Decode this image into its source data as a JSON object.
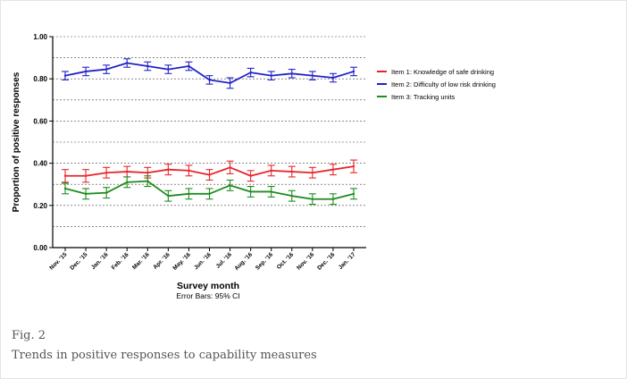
{
  "figure": {
    "label": "Fig. 2",
    "caption": "Trends in positive responses to capability measures"
  },
  "chart_data": {
    "type": "line",
    "title": "",
    "xlabel": "Survey month",
    "xlabel_note": "Error Bars: 95% CI",
    "ylabel": "Proportion of positive responses",
    "ylim": [
      0,
      1
    ],
    "yticks": [
      "0.00",
      "0.20",
      "0.40",
      "0.60",
      "0.80",
      "1.00"
    ],
    "grid": "horizontal dashed every 0.10",
    "legend_position": "right",
    "categories": [
      "Nov. '15",
      "Dec. '15",
      "Jan. '16",
      "Feb. '16",
      "Mar. '16",
      "Apr. '16",
      "May. '16",
      "Jun. '16",
      "Jul. '16",
      "Aug. '16",
      "Sep. '16",
      "Oct. '16",
      "Nov. '16",
      "Dec. '16",
      "Jan. '17"
    ],
    "series": [
      {
        "name": "Item 1: Knowledge of safe drinking",
        "color": "#e8252b",
        "values": [
          0.34,
          0.34,
          0.355,
          0.36,
          0.355,
          0.37,
          0.365,
          0.345,
          0.38,
          0.34,
          0.365,
          0.36,
          0.355,
          0.37,
          0.385
        ],
        "ci": [
          0.03,
          0.03,
          0.025,
          0.025,
          0.025,
          0.025,
          0.025,
          0.025,
          0.03,
          0.025,
          0.025,
          0.025,
          0.025,
          0.025,
          0.03
        ]
      },
      {
        "name": "Item 2: Difficulty of low risk drinking",
        "color": "#2323c8",
        "values": [
          0.815,
          0.835,
          0.845,
          0.875,
          0.86,
          0.845,
          0.86,
          0.795,
          0.78,
          0.83,
          0.815,
          0.825,
          0.815,
          0.805,
          0.835
        ],
        "ci": [
          0.02,
          0.02,
          0.02,
          0.02,
          0.02,
          0.02,
          0.02,
          0.02,
          0.025,
          0.02,
          0.02,
          0.02,
          0.02,
          0.02,
          0.02
        ]
      },
      {
        "name": "Item 3: Tracking units",
        "color": "#1e8c1e",
        "values": [
          0.28,
          0.255,
          0.26,
          0.31,
          0.315,
          0.245,
          0.255,
          0.255,
          0.295,
          0.265,
          0.265,
          0.245,
          0.23,
          0.23,
          0.255
        ],
        "ci": [
          0.025,
          0.025,
          0.025,
          0.025,
          0.025,
          0.025,
          0.025,
          0.025,
          0.025,
          0.025,
          0.025,
          0.025,
          0.025,
          0.025,
          0.025
        ]
      }
    ]
  }
}
